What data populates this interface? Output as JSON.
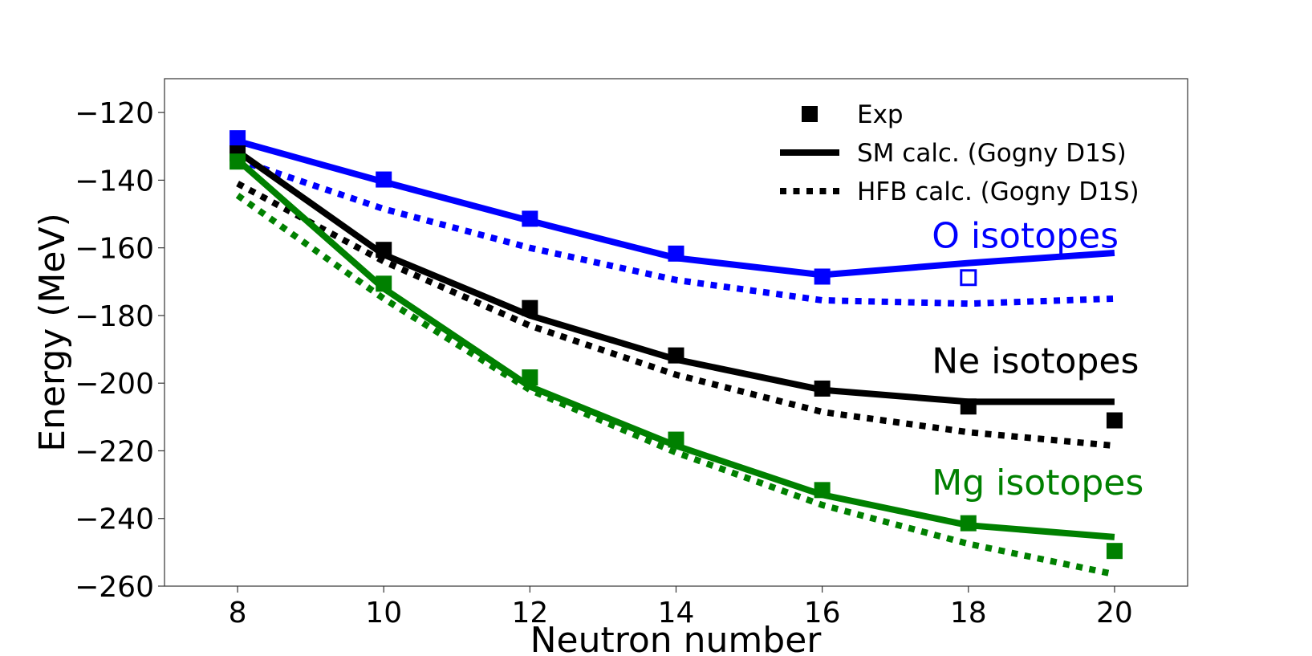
{
  "chart_data": {
    "type": "line",
    "title": "",
    "xlabel": "Neutron number",
    "ylabel": "Energy (MeV)",
    "xlim": [
      7,
      21
    ],
    "ylim": [
      -260,
      -110
    ],
    "xticks": [
      8,
      10,
      12,
      14,
      16,
      18,
      20
    ],
    "yticks": [
      -260,
      -240,
      -220,
      -200,
      -180,
      -160,
      -140,
      -120
    ],
    "xtick_labels": [
      "8",
      "10",
      "12",
      "14",
      "16",
      "18",
      "20"
    ],
    "ytick_labels": [
      "−260",
      "−240",
      "−220",
      "−200",
      "−180",
      "−160",
      "−140",
      "−120"
    ],
    "legend": {
      "position": "top-right",
      "entries": [
        {
          "label": "Exp",
          "style": "marker"
        },
        {
          "label": "SM  calc. (Gogny D1S)",
          "style": "solid"
        },
        {
          "label": "HFB calc. (Gogny D1S)",
          "style": "dotted"
        }
      ]
    },
    "groups": [
      {
        "name": "O isotopes",
        "color": "#0000ff",
        "label_at": [
          17.5,
          -160
        ],
        "exp": {
          "x": [
            8,
            10,
            12,
            14,
            16
          ],
          "y": [
            -127.6,
            -139.8,
            -151.4,
            -161.7,
            -168.5
          ]
        },
        "exp_open": {
          "x": [
            18
          ],
          "y": [
            -168.8
          ]
        },
        "sm": {
          "x": [
            8,
            10,
            12,
            14,
            16,
            18,
            20
          ],
          "y": [
            -128.5,
            -140.5,
            -152.0,
            -163.0,
            -168.0,
            -164.5,
            -161.5
          ]
        },
        "hfb": {
          "x": [
            8,
            10,
            12,
            14,
            16,
            18,
            20
          ],
          "y": [
            -134.0,
            -148.5,
            -160.0,
            -169.5,
            -175.5,
            -176.5,
            -175.0
          ]
        }
      },
      {
        "name": "Ne isotopes",
        "color": "#000000",
        "label_at": [
          17.5,
          -197
        ],
        "exp": {
          "x": [
            8,
            10,
            12,
            14,
            16,
            18,
            20
          ],
          "y": [
            -132.1,
            -160.6,
            -177.8,
            -191.8,
            -201.6,
            -206.9,
            -211.0
          ]
        },
        "sm": {
          "x": [
            8,
            10,
            12,
            14,
            16,
            18,
            20
          ],
          "y": [
            -131.5,
            -162.0,
            -180.0,
            -193.0,
            -202.0,
            -205.5,
            -205.5
          ]
        },
        "hfb": {
          "x": [
            8,
            10,
            12,
            14,
            16,
            18,
            20
          ],
          "y": [
            -141.0,
            -164.0,
            -183.0,
            -197.5,
            -208.5,
            -214.5,
            -218.5
          ]
        }
      },
      {
        "name": "Mg isotopes",
        "color": "#008000",
        "label_at": [
          17.5,
          -233
        ],
        "exp": {
          "x": [
            8,
            10,
            12,
            14,
            16,
            18,
            20
          ],
          "y": [
            -134.5,
            -170.6,
            -198.3,
            -216.7,
            -231.6,
            -241.4,
            -249.6
          ]
        },
        "sm": {
          "x": [
            8,
            10,
            12,
            14,
            16,
            18,
            20
          ],
          "y": [
            -134.0,
            -172.0,
            -201.0,
            -218.5,
            -233.0,
            -242.0,
            -245.5
          ]
        },
        "hfb": {
          "x": [
            8,
            10,
            12,
            14,
            16,
            18,
            20
          ],
          "y": [
            -144.5,
            -175.0,
            -202.0,
            -220.5,
            -236.0,
            -247.5,
            -256.5
          ]
        }
      }
    ]
  }
}
